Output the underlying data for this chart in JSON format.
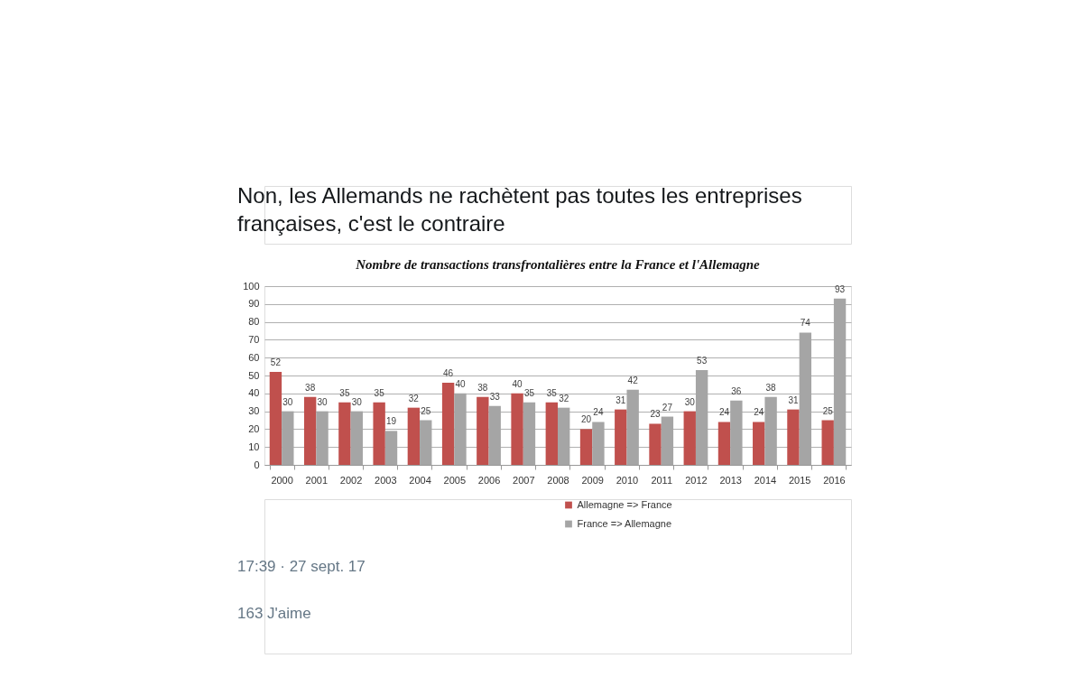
{
  "chart_data": {
    "type": "bar",
    "title": "Nombre de transactions transfrontalières entre la France et l'Allemagne",
    "categories": [
      "2000",
      "2001",
      "2002",
      "2003",
      "2004",
      "2005",
      "2006",
      "2007",
      "2008",
      "2009",
      "2010",
      "2011",
      "2012",
      "2013",
      "2014",
      "2015",
      "2016"
    ],
    "series": [
      {
        "name": "Allemagne => France",
        "color": "#c0504d",
        "values": [
          52,
          38,
          35,
          35,
          32,
          46,
          38,
          40,
          35,
          20,
          31,
          23,
          30,
          24,
          24,
          31,
          25
        ]
      },
      {
        "name": "France => Allemagne",
        "color": "#a5a5a5",
        "values": [
          30,
          30,
          30,
          19,
          25,
          40,
          33,
          35,
          32,
          24,
          42,
          27,
          53,
          36,
          38,
          74,
          93
        ]
      }
    ],
    "ylim": [
      0,
      100
    ],
    "yticks": [
      0,
      10,
      20,
      30,
      40,
      50,
      60,
      70,
      80,
      90,
      100
    ],
    "grid": "y",
    "legend": "bottom",
    "data_labels": true,
    "annotations": [
      "Non, les Allemands ne rachètent pas toutes les entreprises françaises, c'est le contraire",
      "17:39 · 27 sept. 17",
      "163 J'aime"
    ]
  }
}
